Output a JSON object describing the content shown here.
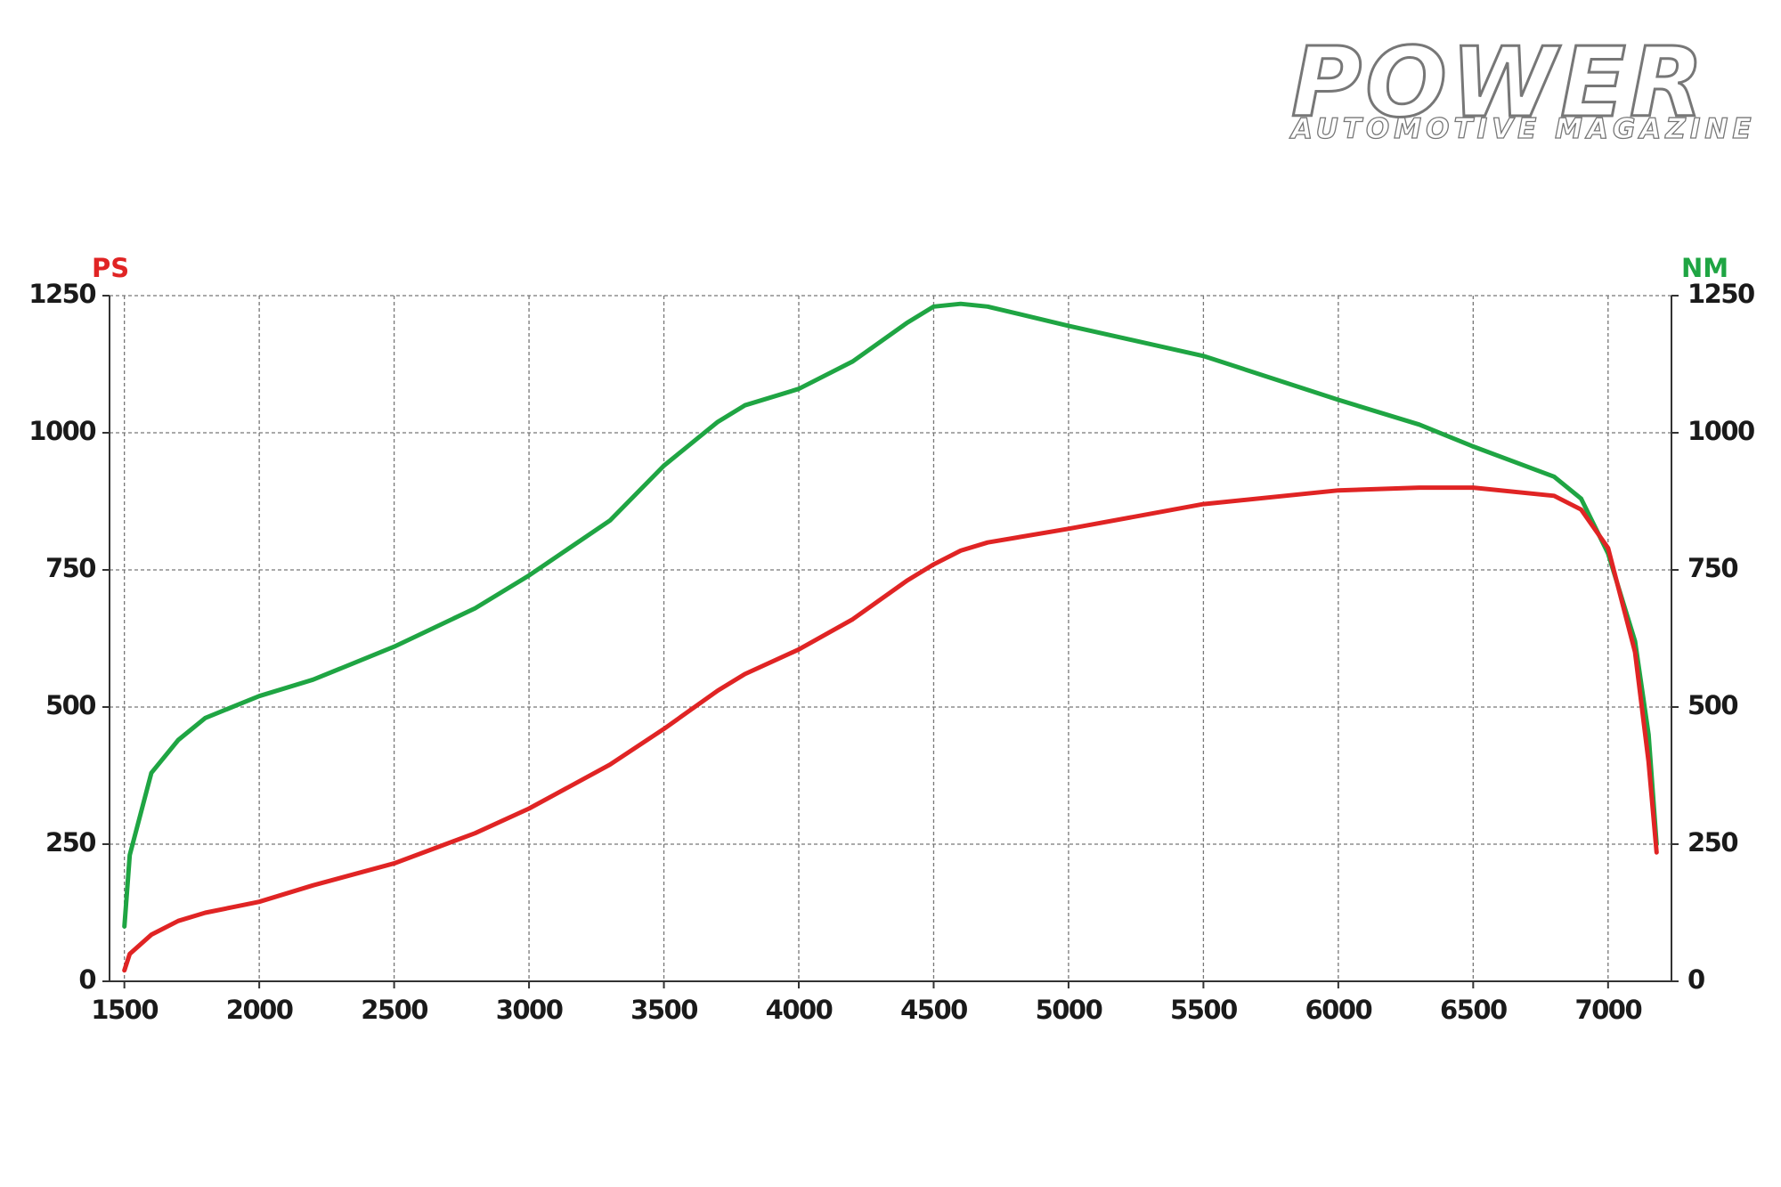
{
  "logo": {
    "title": "POWER",
    "subtitle": "AUTOMOTIVE MAGAZINE"
  },
  "chart_data": {
    "type": "line",
    "ylabel": "PS",
    "y2label": "NM",
    "x": [
      1500,
      1520,
      1600,
      1700,
      1800,
      2000,
      2200,
      2500,
      2800,
      3000,
      3300,
      3500,
      3700,
      3800,
      4000,
      4200,
      4400,
      4500,
      4600,
      4700,
      5000,
      5500,
      6000,
      6300,
      6500,
      6800,
      6900,
      7000,
      7100,
      7150,
      7180
    ],
    "series": [
      {
        "name": "NM",
        "color": "#1fa543",
        "axis": "y2",
        "values": [
          100,
          230,
          380,
          440,
          480,
          520,
          550,
          610,
          680,
          740,
          840,
          940,
          1020,
          1050,
          1080,
          1130,
          1200,
          1230,
          1235,
          1230,
          1195,
          1140,
          1060,
          1015,
          975,
          920,
          880,
          780,
          620,
          450,
          250
        ]
      },
      {
        "name": "PS",
        "color": "#e02424",
        "values": [
          20,
          50,
          85,
          110,
          125,
          145,
          175,
          215,
          270,
          315,
          395,
          460,
          530,
          560,
          605,
          660,
          730,
          760,
          785,
          800,
          825,
          870,
          895,
          900,
          900,
          885,
          860,
          790,
          600,
          400,
          235
        ]
      }
    ],
    "xlim": [
      1445,
      7235
    ],
    "xticks": [
      1500,
      2000,
      2500,
      3000,
      3500,
      4000,
      4500,
      5000,
      5500,
      6000,
      6500,
      7000
    ],
    "ylim": [
      0,
      1250
    ],
    "yticks": [
      0,
      250,
      500,
      750,
      1000,
      1250
    ],
    "y2lim": [
      0,
      1250
    ],
    "y2ticks": [
      0,
      250,
      500,
      750,
      1000,
      1250
    ],
    "grid": true
  }
}
